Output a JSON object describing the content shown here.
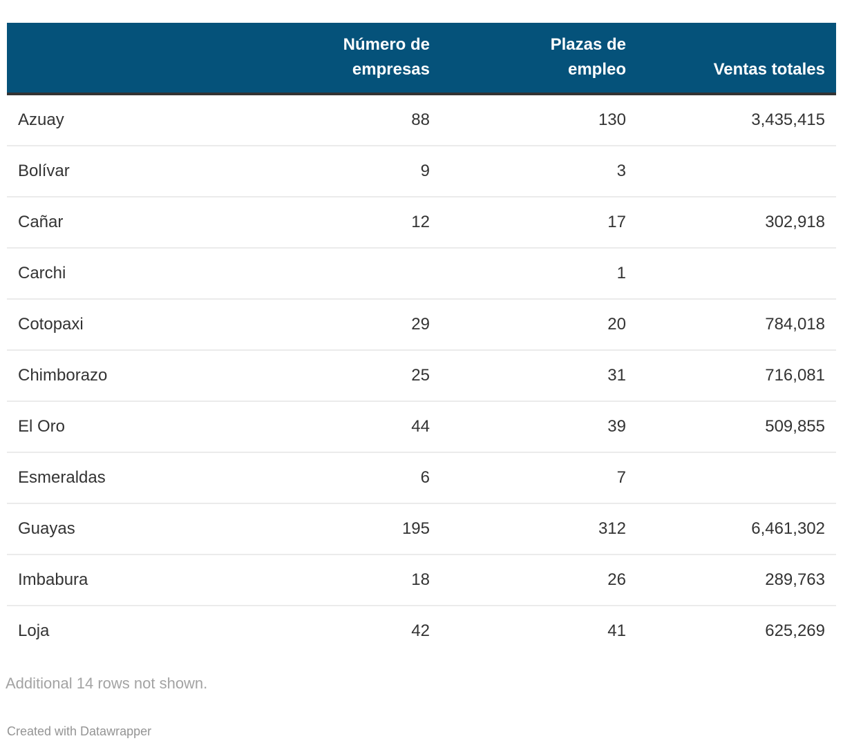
{
  "table": {
    "columns": [
      {
        "label": ""
      },
      {
        "label": "Número de empresas"
      },
      {
        "label": "Plazas de empleo"
      },
      {
        "label": "Ventas totales"
      }
    ],
    "rows": [
      {
        "province": "Azuay",
        "empresas": "88",
        "plazas": "130",
        "ventas": "3,435,415"
      },
      {
        "province": "Bolívar",
        "empresas": "9",
        "plazas": "3",
        "ventas": ""
      },
      {
        "province": "Cañar",
        "empresas": "12",
        "plazas": "17",
        "ventas": "302,918"
      },
      {
        "province": "Carchi",
        "empresas": "",
        "plazas": "1",
        "ventas": ""
      },
      {
        "province": "Cotopaxi",
        "empresas": "29",
        "plazas": "20",
        "ventas": "784,018"
      },
      {
        "province": "Chimborazo",
        "empresas": "25",
        "plazas": "31",
        "ventas": "716,081"
      },
      {
        "province": "El Oro",
        "empresas": "44",
        "plazas": "39",
        "ventas": "509,855"
      },
      {
        "province": "Esmeraldas",
        "empresas": "6",
        "plazas": "7",
        "ventas": ""
      },
      {
        "province": "Guayas",
        "empresas": "195",
        "plazas": "312",
        "ventas": "6,461,302"
      },
      {
        "province": "Imbabura",
        "empresas": "18",
        "plazas": "26",
        "ventas": "289,763"
      },
      {
        "province": "Loja",
        "empresas": "42",
        "plazas": "41",
        "ventas": "625,269"
      }
    ]
  },
  "footer": {
    "note": "Additional 14 rows not shown.",
    "attribution": "Created with Datawrapper"
  },
  "colors": {
    "header_bg": "#05527a",
    "header_text": "#ffffff",
    "header_border": "#333333",
    "row_border": "#ebebeb",
    "body_text": "#333333",
    "note_text": "#a3a3a3",
    "attribution_text": "#949494"
  }
}
